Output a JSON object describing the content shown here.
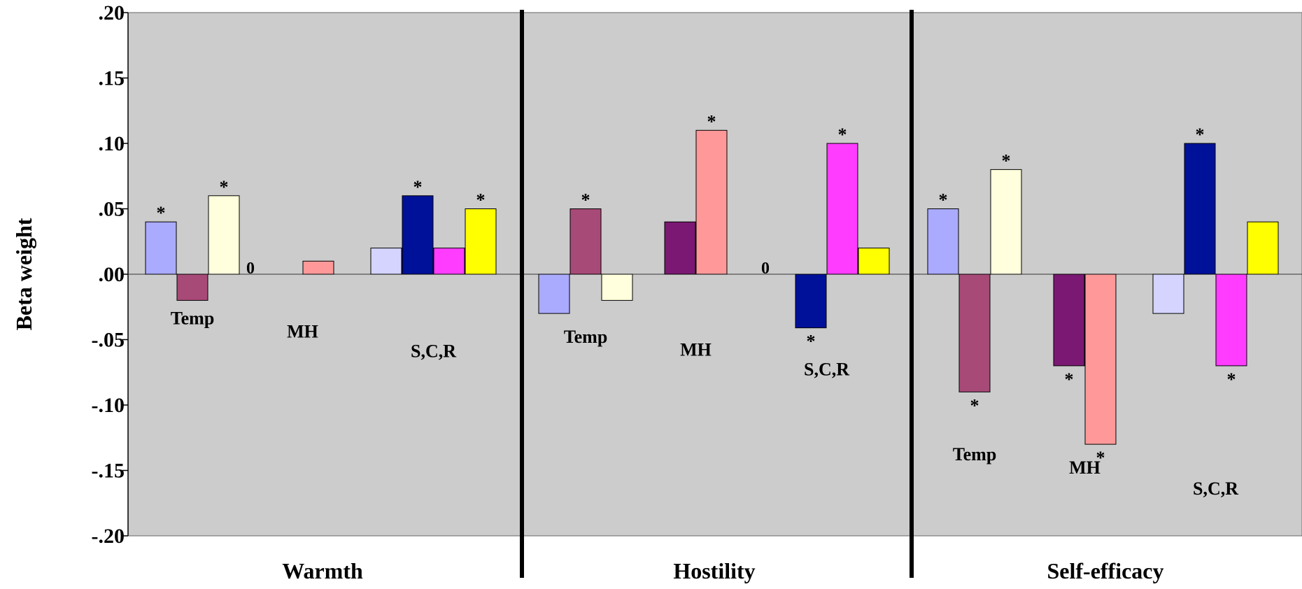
{
  "chart_data": {
    "type": "bar",
    "title": "",
    "xlabel": "",
    "ylabel": "Beta weight",
    "ylim": [
      -0.2,
      0.2
    ],
    "yticks": [
      {
        "value": 0.2,
        "label": ".20"
      },
      {
        "value": 0.15,
        "label": ".15"
      },
      {
        "value": 0.1,
        "label": ".10"
      },
      {
        "value": 0.05,
        "label": ".05"
      },
      {
        "value": 0.0,
        "label": ".00"
      },
      {
        "value": -0.05,
        "label": "-.05"
      },
      {
        "value": -0.1,
        "label": "-.10"
      },
      {
        "value": -0.15,
        "label": "-.15"
      },
      {
        "value": -0.2,
        "label": "-.20"
      }
    ],
    "grid": false,
    "legend": "none",
    "background_color": "#cccccc",
    "panels": [
      {
        "name": "Warmth",
        "groups": [
          {
            "label": "Temp",
            "label_value": -0.033,
            "zero_label": null,
            "bars": [
              {
                "value": 0.04,
                "color": "#aaaaff",
                "star": true
              },
              {
                "value": -0.02,
                "color": "#a84a78",
                "star": false
              },
              {
                "value": 0.06,
                "color": "#ffffdd",
                "star": true
              }
            ]
          },
          {
            "label": "MH",
            "label_value": -0.043,
            "zero_label": "0",
            "bars": [
              {
                "value": 0.0,
                "color": "#7b1873",
                "star": false
              },
              {
                "value": 0.01,
                "color": "#ff9999",
                "star": false
              }
            ]
          },
          {
            "label": "S,C,R",
            "label_value": -0.058,
            "zero_label": null,
            "bars": [
              {
                "value": 0.02,
                "color": "#d4d4ff",
                "star": false
              },
              {
                "value": 0.06,
                "color": "#001199",
                "star": true
              },
              {
                "value": 0.02,
                "color": "#ff3cff",
                "star": false
              },
              {
                "value": 0.05,
                "color": "#ffff00",
                "star": true
              }
            ]
          }
        ]
      },
      {
        "name": "Hostility",
        "groups": [
          {
            "label": "Temp",
            "label_value": -0.047,
            "zero_label": null,
            "bars": [
              {
                "value": -0.03,
                "color": "#aaaaff",
                "star": false
              },
              {
                "value": 0.05,
                "color": "#a84a78",
                "star": true
              },
              {
                "value": -0.02,
                "color": "#ffffdd",
                "star": false
              }
            ]
          },
          {
            "label": "MH",
            "label_value": -0.057,
            "zero_label": null,
            "bars": [
              {
                "value": 0.04,
                "color": "#7b1873",
                "star": false
              },
              {
                "value": 0.11,
                "color": "#ff9999",
                "star": true
              }
            ]
          },
          {
            "label": "S,C,R",
            "label_value": -0.072,
            "zero_label": "0",
            "bars": [
              {
                "value": 0.0,
                "color": "#d4d4ff",
                "star": false
              },
              {
                "value": -0.041,
                "color": "#001199",
                "star": true
              },
              {
                "value": 0.1,
                "color": "#ff3cff",
                "star": true
              },
              {
                "value": 0.02,
                "color": "#ffff00",
                "star": false
              }
            ]
          }
        ]
      },
      {
        "name": "Self-efficacy",
        "groups": [
          {
            "label": "Temp",
            "label_value": -0.137,
            "zero_label": null,
            "bars": [
              {
                "value": 0.05,
                "color": "#aaaaff",
                "star": true
              },
              {
                "value": -0.09,
                "color": "#a84a78",
                "star": true
              },
              {
                "value": 0.08,
                "color": "#ffffdd",
                "star": true
              }
            ]
          },
          {
            "label": "MH",
            "label_value": -0.147,
            "zero_label": null,
            "bars": [
              {
                "value": -0.07,
                "color": "#7b1873",
                "star": true
              },
              {
                "value": -0.13,
                "color": "#ff9999",
                "star": true
              }
            ]
          },
          {
            "label": "S,C,R",
            "label_value": -0.163,
            "zero_label": null,
            "bars": [
              {
                "value": -0.03,
                "color": "#d4d4ff",
                "star": false
              },
              {
                "value": 0.1,
                "color": "#001199",
                "star": true
              },
              {
                "value": -0.07,
                "color": "#ff3cff",
                "star": true
              },
              {
                "value": 0.04,
                "color": "#ffff00",
                "star": false
              }
            ]
          }
        ]
      }
    ],
    "significance_marker": "*"
  }
}
